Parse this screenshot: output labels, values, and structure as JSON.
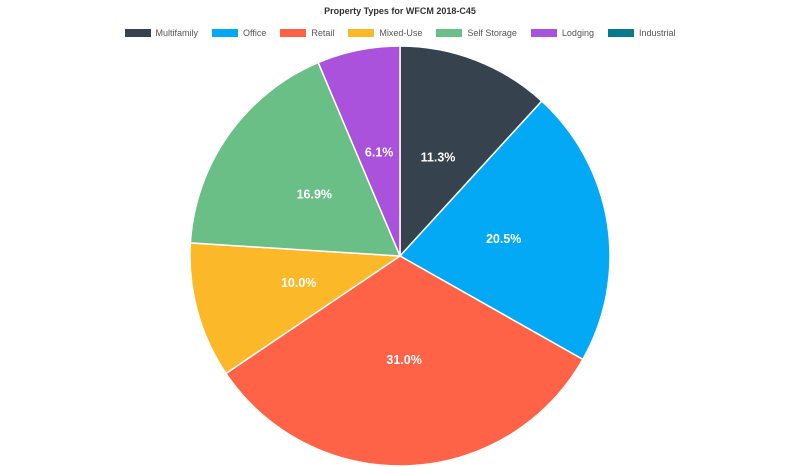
{
  "chart_data": {
    "type": "pie",
    "title": "Property Types for WFCM 2018-C45",
    "legend_position": "top",
    "slices": [
      {
        "name": "Multifamily",
        "value": 11.3,
        "label": "11.3%",
        "color": "#36424e"
      },
      {
        "name": "Office",
        "value": 20.5,
        "label": "20.5%",
        "color": "#03a9f4"
      },
      {
        "name": "Retail",
        "value": 31.0,
        "label": "31.0%",
        "color": "#ff6347"
      },
      {
        "name": "Mixed-Use",
        "value": 10.0,
        "label": "10.0%",
        "color": "#fbb829"
      },
      {
        "name": "Self Storage",
        "value": 16.9,
        "label": "16.9%",
        "color": "#6abf87"
      },
      {
        "name": "Lodging",
        "value": 6.1,
        "label": "6.1%",
        "color": "#ab52dd"
      },
      {
        "name": "Industrial",
        "value": 0,
        "label": "",
        "color": "#067b8b"
      }
    ]
  }
}
